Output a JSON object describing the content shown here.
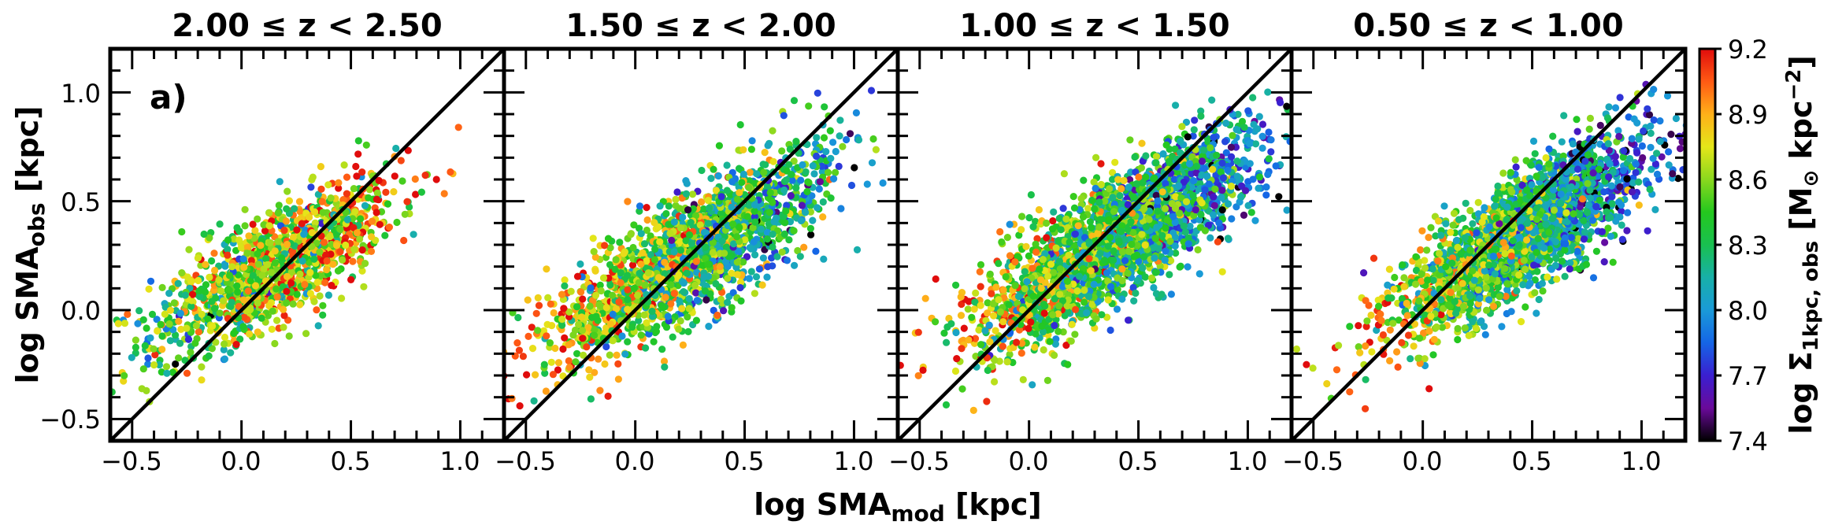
{
  "chart_data": {
    "type": "scatter",
    "panel_tag": "a)",
    "xlabel": "log SMA",
    "xlabel_sub": "mod",
    "xlabel_unit": " [kpc]",
    "ylabel": "log SMA",
    "ylabel_sub": "obs",
    "ylabel_unit": " [kpc]",
    "xlim": [
      -0.6,
      1.2
    ],
    "ylim": [
      -0.6,
      1.2
    ],
    "xticks": [
      -0.5,
      0.0,
      0.5,
      1.0
    ],
    "xtick_labels": [
      "−0.5",
      "0.0",
      "0.5",
      "1.0"
    ],
    "yticks": [
      -0.5,
      0.0,
      0.5,
      1.0
    ],
    "ytick_labels": [
      "−0.5",
      "0.0",
      "0.5",
      "1.0"
    ],
    "reference_line": "one-to-one (y = x)",
    "colorbar": {
      "label_prefix": "log Σ",
      "label_sub": "1kpc, obs",
      "label_units_open": " [M",
      "label_sun": "⊙",
      "label_units_rest": " kpc",
      "label_exp": "−2",
      "label_close": "]",
      "range": [
        7.4,
        9.2
      ],
      "ticks": [
        9.2,
        8.9,
        8.6,
        8.3,
        8.0,
        7.7,
        7.4
      ],
      "tick_labels": [
        "9.2",
        "8.9",
        "8.6",
        "8.3",
        "8.0",
        "7.7",
        "7.4"
      ],
      "colormap": [
        "#000000",
        "#6a0a9a",
        "#3a1fd0",
        "#1565e6",
        "#1a9ad8",
        "#18b0a8",
        "#19c050",
        "#24c81e",
        "#8ad81e",
        "#e4e619",
        "#ffb019",
        "#ff5a14",
        "#e00c0c"
      ]
    },
    "panels": [
      {
        "title": "2.00 ≤ z < 2.50",
        "n_points": 1300,
        "x_center": 0.15,
        "x_spread": 0.28,
        "slope": 0.55,
        "intercept": 0.12,
        "scatter": 0.13,
        "mean_density": 8.65,
        "density_slope": 0.3
      },
      {
        "title": "1.50 ≤ z < 2.00",
        "n_points": 1900,
        "x_center": 0.25,
        "x_spread": 0.32,
        "slope": 0.6,
        "intercept": 0.1,
        "scatter": 0.14,
        "mean_density": 8.45,
        "density_slope": -0.5
      },
      {
        "title": "1.00 ≤ z < 1.50",
        "n_points": 2500,
        "x_center": 0.4,
        "x_spread": 0.32,
        "slope": 0.62,
        "intercept": 0.08,
        "scatter": 0.14,
        "mean_density": 8.35,
        "density_slope": -0.6
      },
      {
        "title": "0.50 ≤ z < 1.00",
        "n_points": 2400,
        "x_center": 0.45,
        "x_spread": 0.28,
        "slope": 0.62,
        "intercept": 0.07,
        "scatter": 0.13,
        "mean_density": 8.3,
        "density_slope": -0.7
      }
    ]
  }
}
